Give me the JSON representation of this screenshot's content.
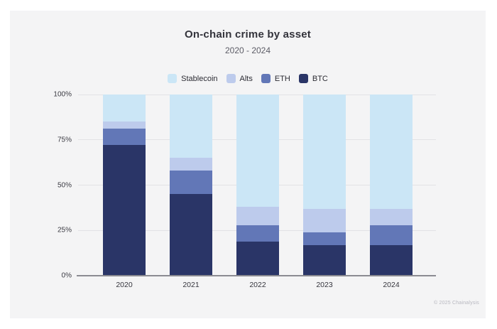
{
  "footer": {
    "copyright": "© 2025 Chainalysis"
  },
  "chart_data": {
    "type": "bar",
    "stacked": true,
    "title": "On-chain crime by asset",
    "subtitle": "2020 - 2024",
    "categories": [
      "2020",
      "2021",
      "2022",
      "2023",
      "2024"
    ],
    "series": [
      {
        "name": "BTC",
        "color": "#2a3567",
        "values": [
          72,
          45,
          19,
          17,
          17
        ]
      },
      {
        "name": "ETH",
        "color": "#6277b7",
        "values": [
          9,
          13,
          9,
          7,
          11
        ]
      },
      {
        "name": "Alts",
        "color": "#bdcbec",
        "values": [
          4,
          7,
          10,
          13,
          9
        ]
      },
      {
        "name": "Stablecoin",
        "color": "#cbe6f6",
        "values": [
          15,
          35,
          62,
          63,
          63
        ]
      }
    ],
    "legend_order": [
      "Stablecoin",
      "Alts",
      "ETH",
      "BTC"
    ],
    "legend_position": "top",
    "y_ticks": [
      "100%",
      "75%",
      "50%",
      "25%",
      "0%"
    ],
    "ylim": [
      0,
      100
    ],
    "xlabel": "",
    "ylabel": "",
    "grid": true
  }
}
